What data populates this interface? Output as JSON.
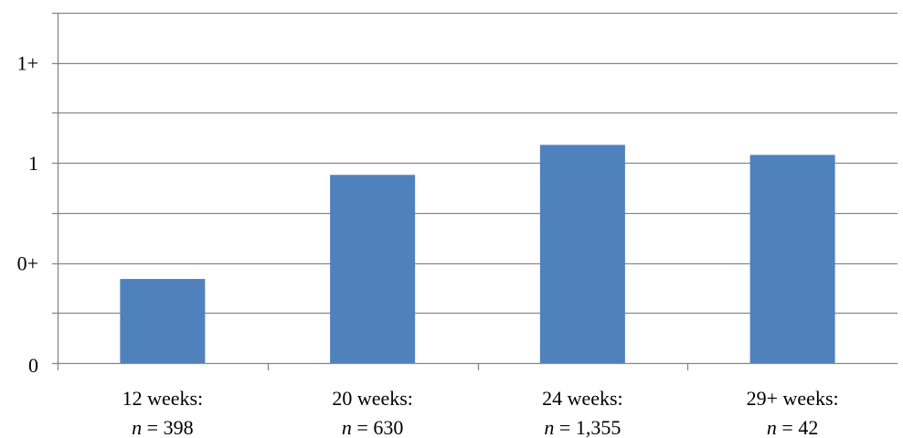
{
  "chart_data": {
    "type": "bar",
    "categories": [
      {
        "label": "12 weeks:",
        "n_prefix": "n",
        "n_rest": " = 398"
      },
      {
        "label": "20 weeks:",
        "n_prefix": "n",
        "n_rest": " = 630"
      },
      {
        "label": "24 weeks:",
        "n_prefix": "n",
        "n_rest": " = 1,355"
      },
      {
        "label": "29+ weeks:",
        "n_prefix": "n",
        "n_rest": " = 42"
      }
    ],
    "values": [
      0.42,
      0.94,
      1.09,
      1.04
    ],
    "ylim": [
      0,
      1.5
    ],
    "y_ticks": [
      {
        "value": 0,
        "label": "0"
      },
      {
        "value": 0.5,
        "label": "0+"
      },
      {
        "value": 1,
        "label": "1"
      },
      {
        "value": 1.5,
        "label": "1+"
      }
    ],
    "minor_gridlines": [
      0.25,
      0.75,
      1.25,
      1.75
    ],
    "y_max_axis": 1.75,
    "title": "",
    "xlabel": "",
    "ylabel": "",
    "grid": true,
    "bar_color": "#4F81BD",
    "grid_color": "#878787",
    "axis_color": "#878787"
  }
}
